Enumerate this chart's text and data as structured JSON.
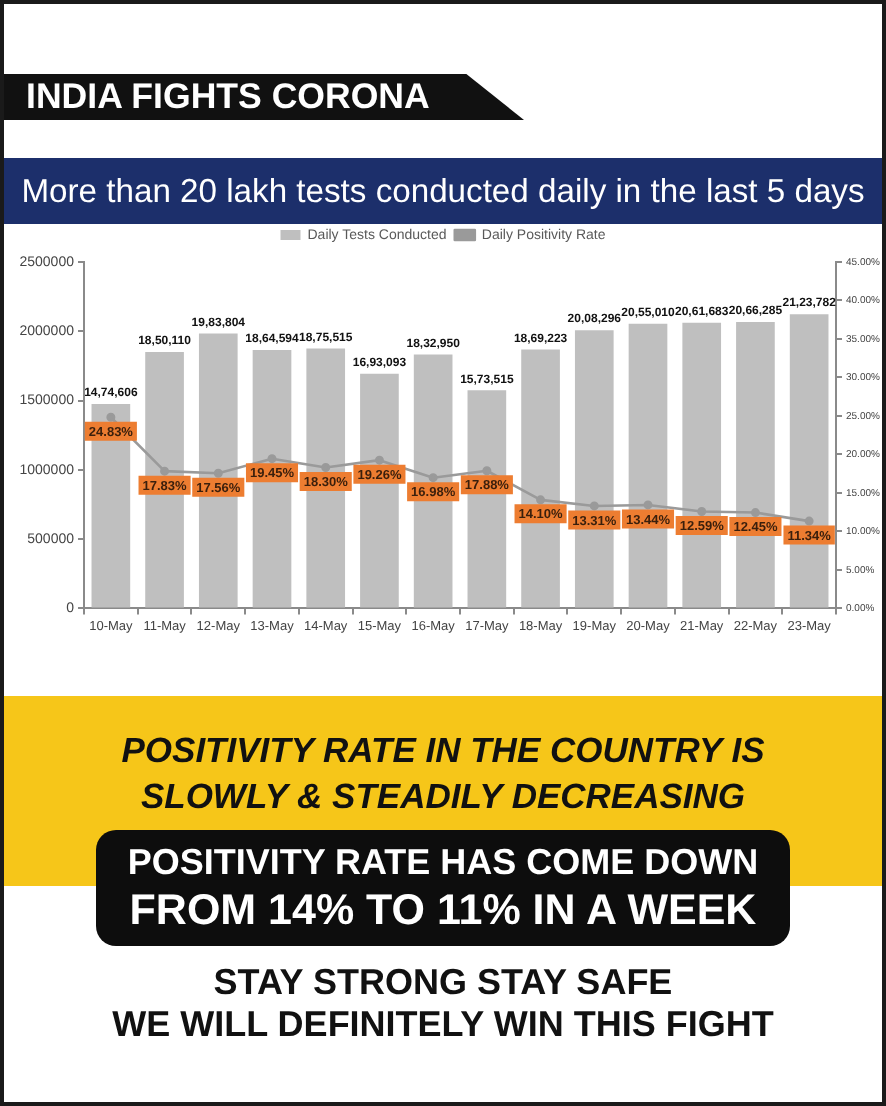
{
  "chart_data": {
    "type": "bar",
    "title": "INDIA FIGHTS CORONA",
    "subtitle": "More than 20 lakh tests conducted daily in the last 5 days",
    "categories": [
      "10-May",
      "11-May",
      "12-May",
      "13-May",
      "14-May",
      "15-May",
      "16-May",
      "17-May",
      "18-May",
      "19-May",
      "20-May",
      "21-May",
      "22-May",
      "23-May"
    ],
    "series": [
      {
        "name": "Daily Tests Conducted",
        "color": "#bfbfbf",
        "values": [
          1474606,
          1850110,
          1983804,
          1864594,
          1875515,
          1693093,
          1832950,
          1573515,
          1869223,
          2008296,
          2055010,
          2061683,
          2066285,
          2123782
        ],
        "value_labels": [
          "14,74,606",
          "18,50,110",
          "19,83,804",
          "18,64,594",
          "18,75,515",
          "16,93,093",
          "18,32,950",
          "15,73,515",
          "18,69,223",
          "20,08,296",
          "20,55,010",
          "20,61,683",
          "20,66,285",
          "21,23,782"
        ]
      },
      {
        "name": "Daily Positivity Rate",
        "type": "line",
        "axis": "y2",
        "color": "#9a9a9a",
        "values": [
          24.83,
          17.83,
          17.56,
          19.45,
          18.3,
          19.26,
          16.98,
          17.88,
          14.1,
          13.31,
          13.44,
          12.59,
          12.45,
          11.34
        ],
        "value_labels": [
          "24.83%",
          "17.83%",
          "17.56%",
          "19.45%",
          "18.30%",
          "19.26%",
          "16.98%",
          "17.88%",
          "14.10%",
          "13.31%",
          "13.44%",
          "12.59%",
          "12.45%",
          "11.34%"
        ]
      }
    ],
    "ylim": [
      0,
      2500000
    ],
    "yticks": [
      0,
      500000,
      1000000,
      1500000,
      2000000,
      2500000
    ],
    "y2lim": [
      0,
      45
    ],
    "y2ticks": [
      {
        "value": 0,
        "label": "0.00%"
      },
      {
        "value": 5,
        "label": "5.00%"
      },
      {
        "value": 10,
        "label": "10.00%"
      },
      {
        "value": 15,
        "label": "15.00%"
      },
      {
        "value": 20,
        "label": "20.00%"
      },
      {
        "value": 25,
        "label": "25.00%"
      },
      {
        "value": 30,
        "label": "30.00%"
      },
      {
        "value": 35,
        "label": "35.00%"
      },
      {
        "value": 40,
        "label": "40.00%"
      },
      {
        "value": 45,
        "label": "45.00%"
      }
    ],
    "grid": false,
    "legend": "top",
    "marker": "circle",
    "annotations": [
      "POSITIVITY RATE IN THE COUNTRY IS\nSLOWLY & STEADILY DECREASING",
      "POSITIVITY RATE HAS COME DOWN\nFROM 14% TO 11% IN A WEEK",
      "STAY STRONG STAY SAFE\nWE WILL DEFINITELY WIN THIS FIGHT"
    ]
  }
}
